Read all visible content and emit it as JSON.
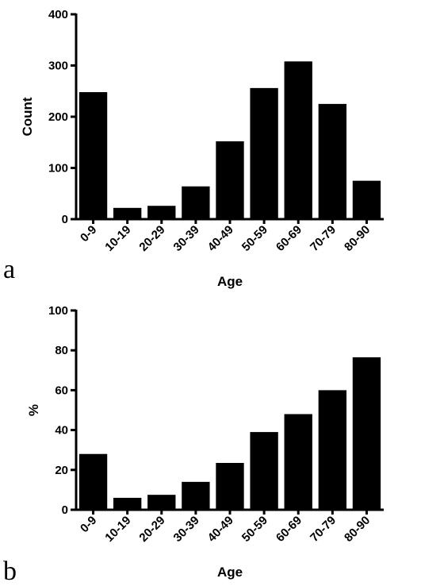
{
  "chart_data": [
    {
      "panel": "a",
      "type": "bar",
      "categories": [
        "0-9",
        "10-19",
        "20-29",
        "30-39",
        "40-49",
        "50-59",
        "60-69",
        "70-79",
        "80-90"
      ],
      "values": [
        248,
        22,
        26,
        64,
        152,
        256,
        308,
        225,
        75
      ],
      "title": "",
      "xlabel": "Age",
      "ylabel": "Count",
      "ylim": [
        0,
        400
      ],
      "yticks": [
        0,
        100,
        200,
        300,
        400
      ],
      "grid": false,
      "bar_color": "#000000"
    },
    {
      "panel": "b",
      "type": "bar",
      "categories": [
        "0-9",
        "10-19",
        "20-29",
        "30-39",
        "40-49",
        "50-59",
        "60-69",
        "70-79",
        "80-90"
      ],
      "values": [
        28,
        6,
        7.5,
        14,
        23.5,
        39,
        48,
        60,
        76.5
      ],
      "title": "",
      "xlabel": "Age",
      "ylabel": "%",
      "ylim": [
        0,
        100
      ],
      "yticks": [
        0,
        20,
        40,
        60,
        80,
        100
      ],
      "grid": false,
      "bar_color": "#000000"
    }
  ]
}
